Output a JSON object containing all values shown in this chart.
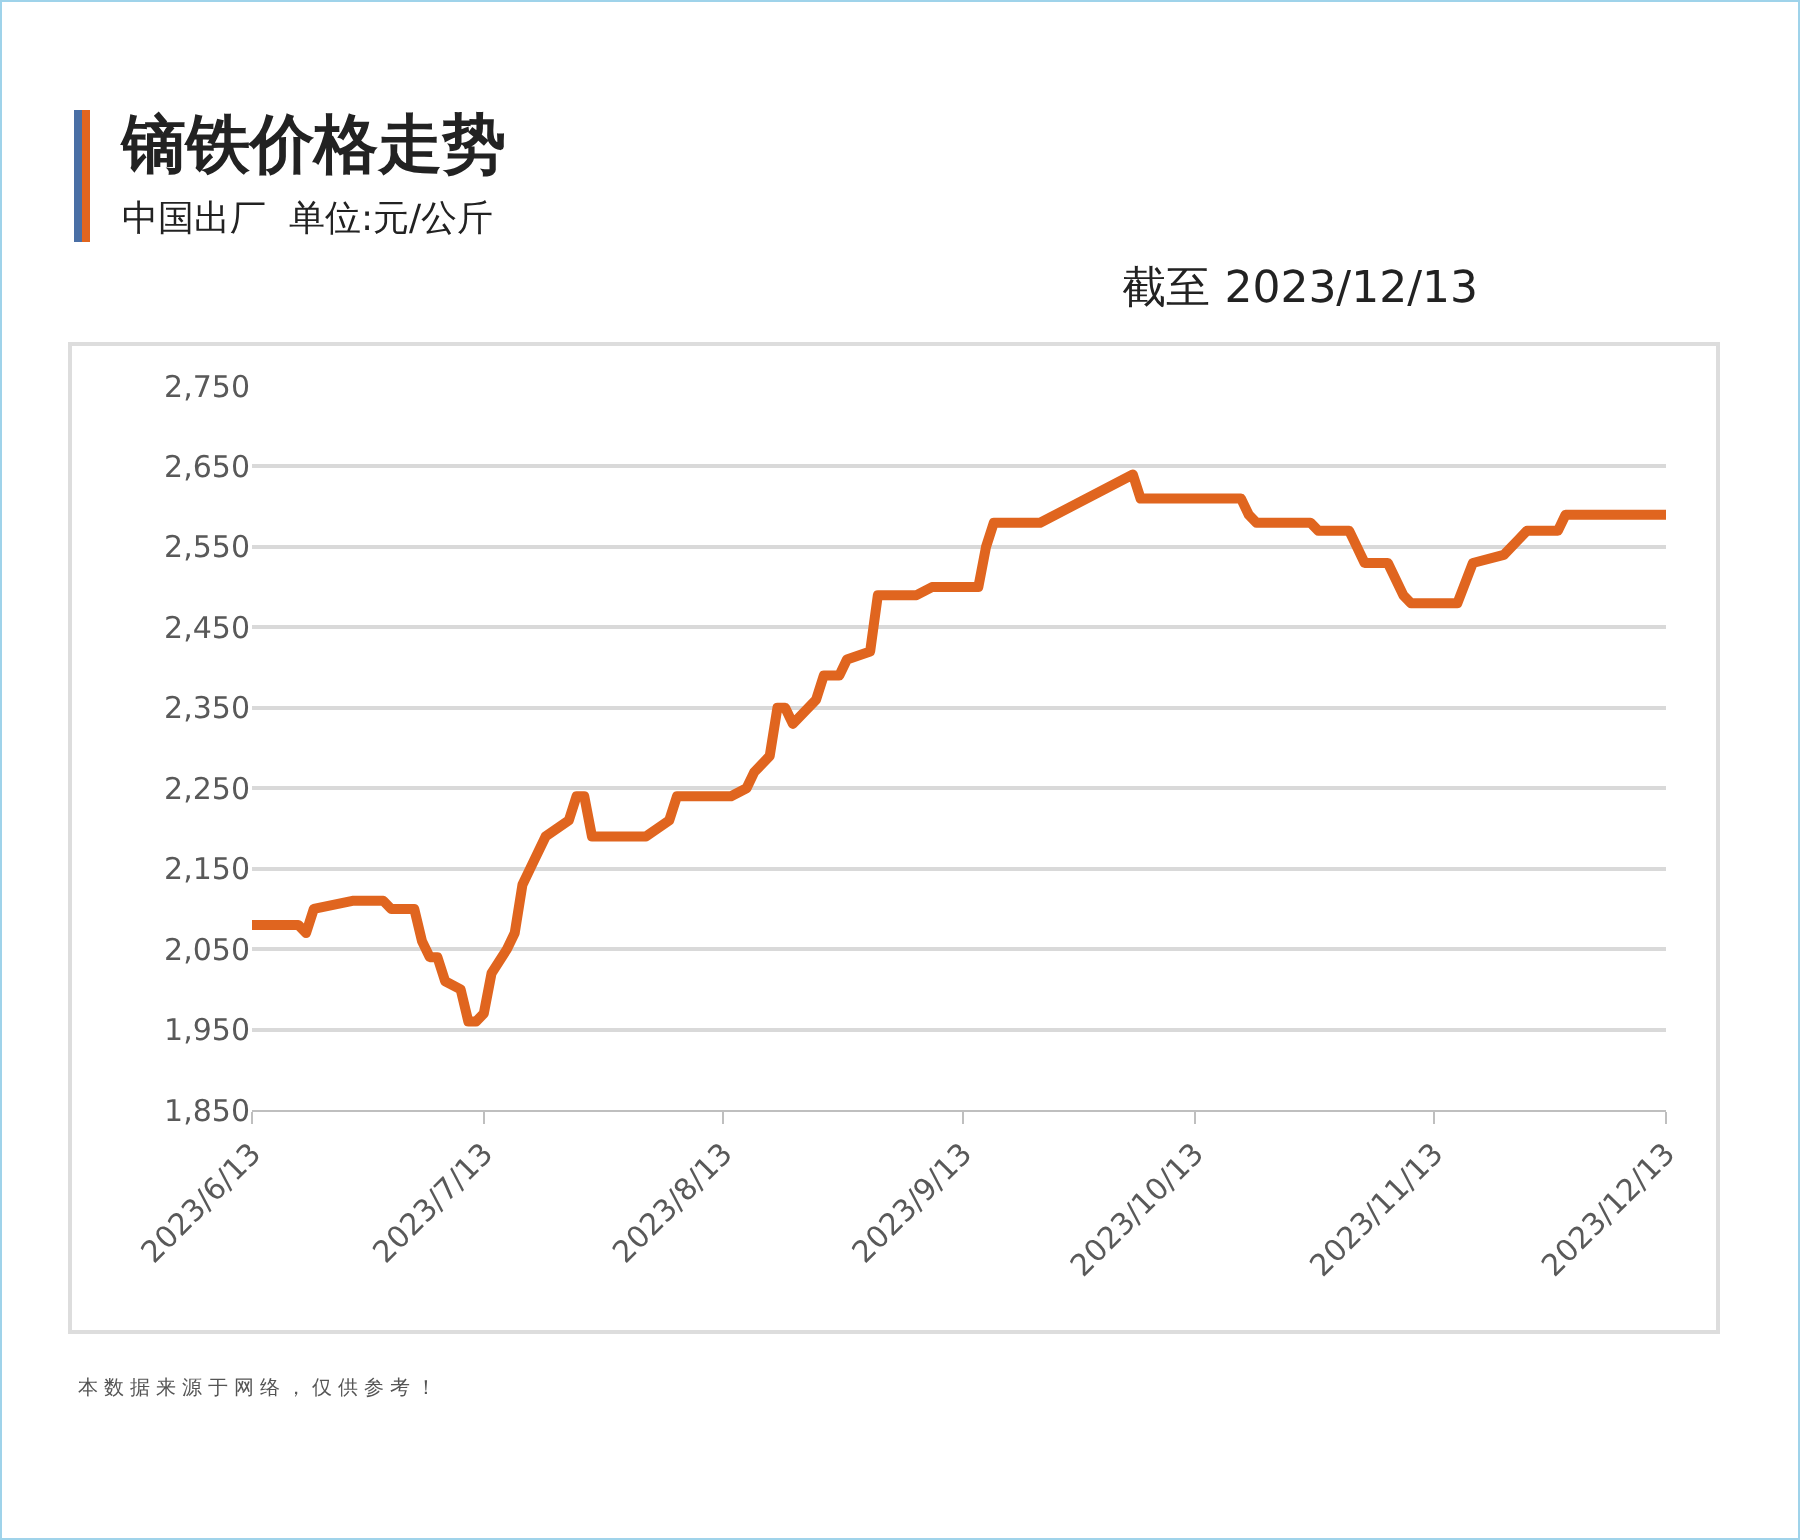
{
  "chart_data": {
    "type": "line",
    "title": "镝铁价格走势",
    "subtitle": "中国出厂  单位:元/公斤",
    "annotations": [
      "截至 2023/12/13",
      "本数据来源于网络，仅供参考！"
    ],
    "x": [
      "2023-06-13",
      "2023-06-19",
      "2023-06-20",
      "2023-06-21",
      "2023-06-26",
      "2023-06-30",
      "2023-07-01",
      "2023-07-04",
      "2023-07-05",
      "2023-07-06",
      "2023-07-07",
      "2023-07-08",
      "2023-07-10",
      "2023-07-11",
      "2023-07-12",
      "2023-07-13",
      "2023-07-14",
      "2023-07-16",
      "2023-07-17",
      "2023-07-18",
      "2023-07-19",
      "2023-07-21",
      "2023-07-24",
      "2023-07-25",
      "2023-07-26",
      "2023-07-27",
      "2023-08-03",
      "2023-08-06",
      "2023-08-07",
      "2023-08-14",
      "2023-08-16",
      "2023-08-17",
      "2023-08-19",
      "2023-08-20",
      "2023-08-21",
      "2023-08-22",
      "2023-08-25",
      "2023-08-26",
      "2023-08-28",
      "2023-08-29",
      "2023-09-01",
      "2023-09-02",
      "2023-09-07",
      "2023-09-09",
      "2023-09-15",
      "2023-09-16",
      "2023-09-17",
      "2023-09-23",
      "2023-10-05",
      "2023-10-06",
      "2023-10-19",
      "2023-10-20",
      "2023-10-21",
      "2023-10-28",
      "2023-10-29",
      "2023-11-02",
      "2023-11-03",
      "2023-11-04",
      "2023-11-07",
      "2023-11-09",
      "2023-11-10",
      "2023-11-16",
      "2023-11-18",
      "2023-11-22",
      "2023-11-24",
      "2023-11-25",
      "2023-11-29",
      "2023-11-30",
      "2023-12-13"
    ],
    "series": [
      {
        "color": "#e0651f",
        "values": [
          2080,
          2080,
          2070,
          2100,
          2110,
          2110,
          2100,
          2100,
          2060,
          2040,
          2040,
          2010,
          2000,
          1960,
          1960,
          1970,
          2020,
          2050,
          2070,
          2130,
          2150,
          2190,
          2210,
          2240,
          2240,
          2190,
          2190,
          2210,
          2240,
          2240,
          2250,
          2270,
          2290,
          2350,
          2350,
          2330,
          2360,
          2390,
          2390,
          2410,
          2420,
          2490,
          2490,
          2500,
          2500,
          2550,
          2580,
          2580,
          2640,
          2610,
          2610,
          2590,
          2580,
          2580,
          2570,
          2570,
          2550,
          2530,
          2530,
          2490,
          2480,
          2480,
          2530,
          2540,
          2560,
          2570,
          2570,
          2590,
          2590
        ]
      }
    ],
    "xlim": [
      "2023-06-13",
      "2023-12-13"
    ],
    "xticks": [
      {
        "value": "2023-06-13",
        "label": "2023/6/13"
      },
      {
        "value": "2023-07-13",
        "label": "2023/7/13"
      },
      {
        "value": "2023-08-13",
        "label": "2023/8/13"
      },
      {
        "value": "2023-09-13",
        "label": "2023/9/13"
      },
      {
        "value": "2023-10-13",
        "label": "2023/10/13"
      },
      {
        "value": "2023-11-13",
        "label": "2023/11/13"
      },
      {
        "value": "2023-12-13",
        "label": "2023/12/13"
      }
    ],
    "ylim": [
      1850,
      2750
    ],
    "yticks": [
      {
        "value": 1850,
        "label": "1,850"
      },
      {
        "value": 1950,
        "label": "1,950"
      },
      {
        "value": 2050,
        "label": "2,050"
      },
      {
        "value": 2150,
        "label": "2,150"
      },
      {
        "value": 2250,
        "label": "2,250"
      },
      {
        "value": 2350,
        "label": "2,350"
      },
      {
        "value": 2450,
        "label": "2,450"
      },
      {
        "value": 2550,
        "label": "2,550"
      },
      {
        "value": 2650,
        "label": "2,650"
      },
      {
        "value": 2750,
        "label": "2,750"
      }
    ],
    "grid": "y",
    "marker": "none",
    "line_style": "solid"
  }
}
